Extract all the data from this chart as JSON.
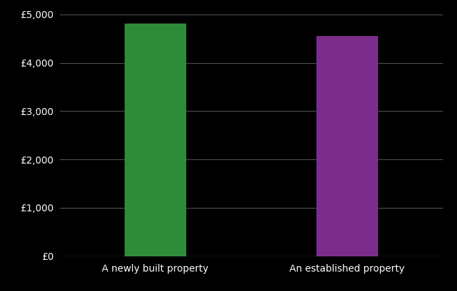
{
  "categories": [
    "A newly built property",
    "An established property"
  ],
  "values": [
    4820,
    4560
  ],
  "bar_colors": [
    "#2e8b3a",
    "#7b2d8b"
  ],
  "background_color": "#000000",
  "text_color": "#ffffff",
  "grid_color": "#666666",
  "ylim": [
    0,
    5000
  ],
  "ytick_step": 1000,
  "bar_width": 0.32,
  "xlim": [
    -0.5,
    1.5
  ],
  "figsize": [
    6.6,
    4.2
  ],
  "dpi": 100
}
